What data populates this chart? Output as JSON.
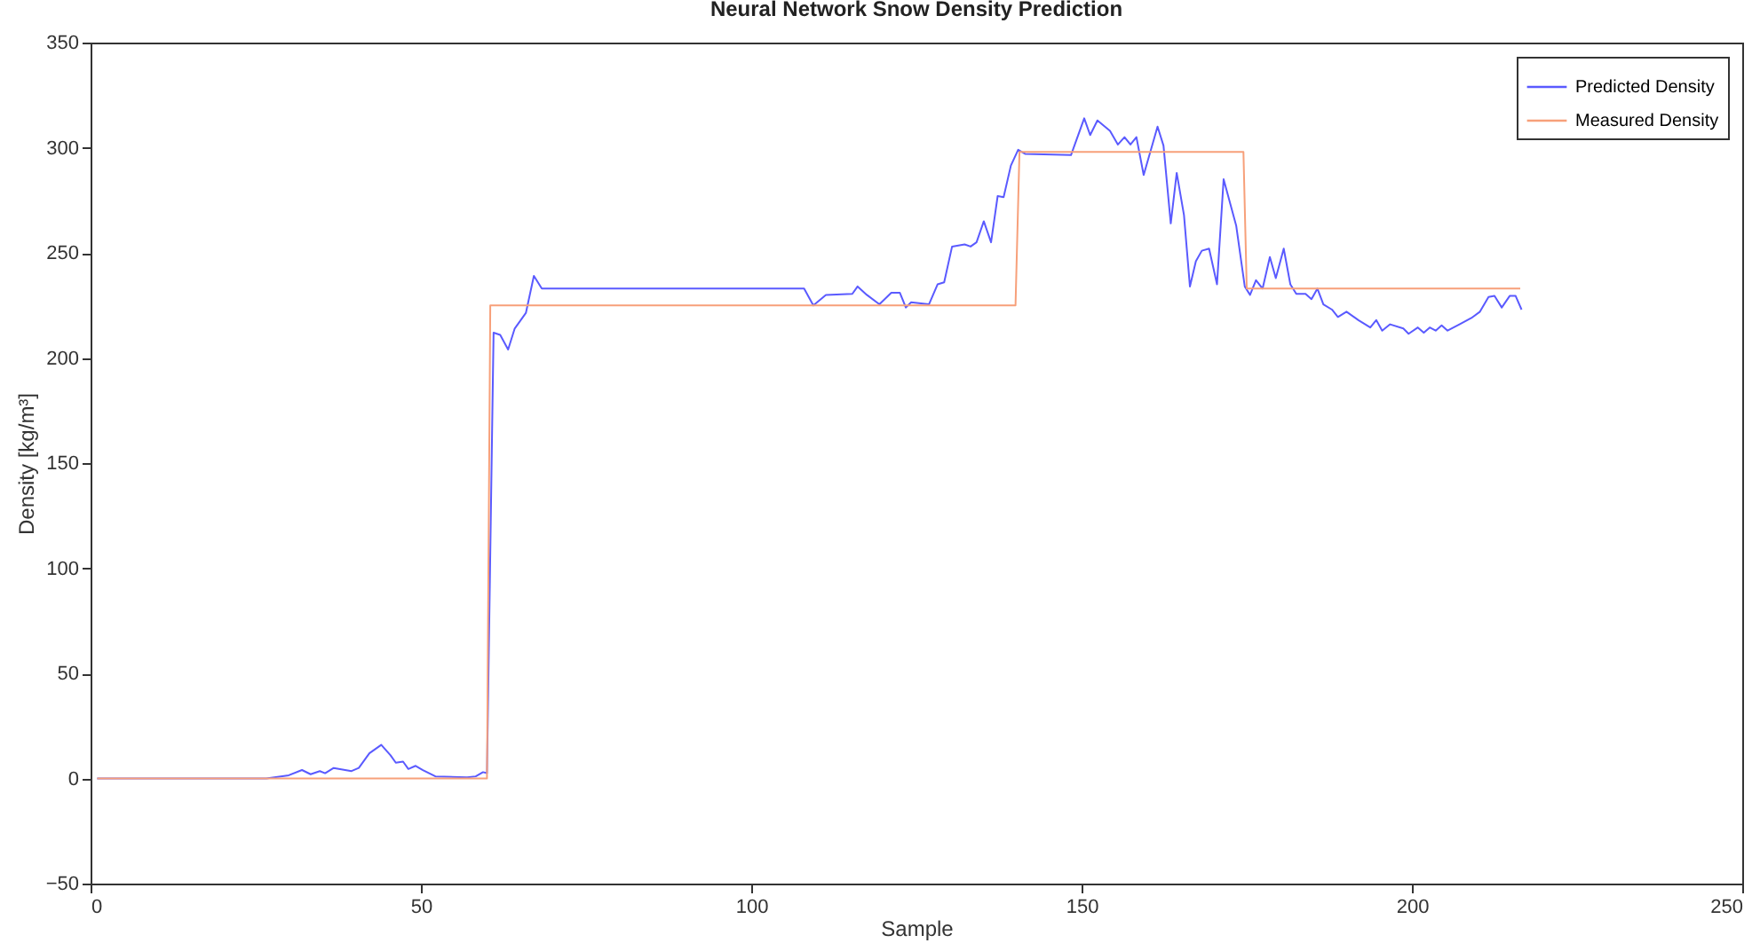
{
  "chart_data": {
    "type": "line",
    "title": "Neural Network Snow Density Prediction",
    "xlabel": "Sample",
    "ylabel": "Density [kg/m³]",
    "xlim": [
      0,
      250
    ],
    "xticks": [
      0,
      50,
      100,
      150,
      200,
      250
    ],
    "ylim": [
      -50,
      350
    ],
    "yticks": [
      -50,
      0,
      50,
      100,
      150,
      200,
      250,
      300,
      350
    ],
    "grid": false,
    "legend": "top right",
    "line_style": "solid",
    "marker": "none",
    "series": [
      {
        "name": "Predicted Density",
        "color": "#5a5aff",
        "x": [
          1,
          26.6,
          30,
          32,
          33.3,
          34.7,
          35.5,
          36.8,
          39.5,
          40.6,
          42.2,
          44,
          45.4,
          46.2,
          47.3,
          48.1,
          49.2,
          50.3,
          52.2,
          57,
          58.3,
          59.4,
          60,
          61,
          62,
          63.2,
          64.2,
          65.9,
          67.1,
          68.3,
          108,
          109.4,
          111.3,
          115.3,
          116.1,
          117.5,
          119.4,
          121.2,
          122.5,
          123.4,
          124.2,
          126.9,
          128.2,
          129.2,
          130.4,
          132.3,
          133.2,
          134.1,
          135.2,
          136.3,
          137.3,
          138.2,
          139.3,
          140.4,
          141.5,
          148.4,
          150.4,
          151.3,
          152.4,
          154.3,
          155.5,
          156.5,
          157.4,
          158.3,
          159.4,
          161.5,
          162.4,
          163.5,
          164.4,
          165.5,
          166.4,
          167.3,
          168.2,
          169.3,
          170.5,
          171.5,
          173.4,
          174.7,
          175.5,
          176.4,
          177.4,
          178.5,
          179.4,
          180.6,
          181.6,
          182.5,
          183.9,
          184.8,
          185.7,
          186.6,
          187.9,
          188.8,
          190.1,
          191.9,
          193.7,
          194.6,
          195.5,
          196.7,
          198.7,
          199.5,
          200.9,
          201.8,
          202.7,
          203.6,
          204.5,
          205.4,
          207.2,
          209,
          210.3,
          211.6,
          212.5,
          213.6,
          214.8,
          215.7,
          216.6
        ],
        "values": [
          0,
          0,
          1.5,
          4,
          2,
          3.5,
          2.5,
          5,
          3.5,
          5,
          12,
          16,
          11,
          7.5,
          8,
          4.5,
          6,
          4,
          1,
          0.5,
          1,
          3,
          2.5,
          212,
          211,
          204,
          214,
          221.5,
          239,
          233,
          233,
          225,
          230,
          230.5,
          234,
          230,
          225.5,
          231,
          231,
          224,
          226.5,
          225.5,
          235,
          236,
          253,
          254,
          253,
          255,
          265,
          255,
          277,
          276.5,
          291.5,
          299,
          297,
          296.5,
          314,
          306,
          313,
          308,
          301.5,
          305,
          301.5,
          305,
          287,
          310,
          301,
          264,
          288,
          268,
          234,
          246,
          251,
          252,
          235,
          285,
          263,
          234,
          230,
          237,
          233,
          248,
          238,
          252,
          235,
          230.5,
          230.5,
          228,
          233,
          225.5,
          223,
          219.5,
          222,
          218,
          214.5,
          218,
          213,
          216,
          214,
          211.5,
          214.5,
          212,
          214.5,
          213,
          215.5,
          213,
          216,
          219,
          222,
          229,
          229.5,
          224,
          229.5,
          229.5,
          223
        ]
      },
      {
        "name": "Measured Density",
        "color": "#f7a07a",
        "x": [
          1,
          60,
          60.5,
          140,
          140.6,
          174.5,
          175,
          216.4
        ],
        "values": [
          0,
          0,
          225,
          225,
          298,
          298,
          233,
          233
        ]
      }
    ]
  }
}
